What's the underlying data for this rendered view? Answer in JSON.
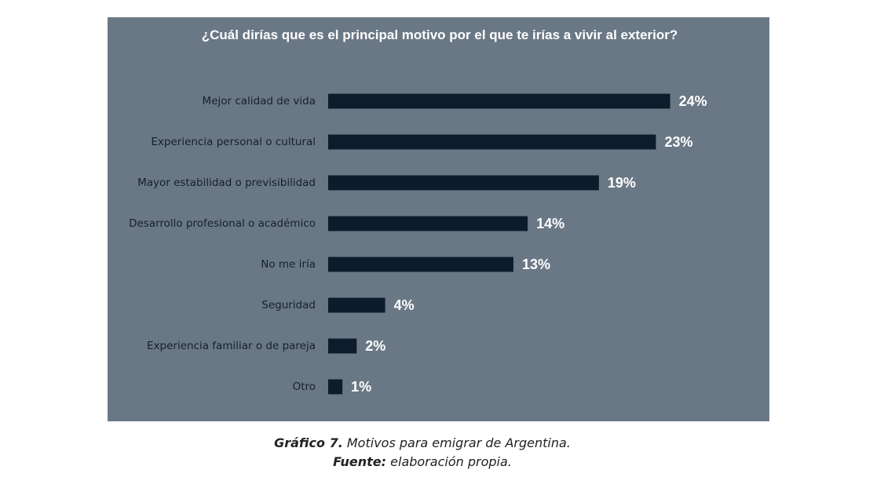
{
  "chart_data": {
    "type": "hbar",
    "title": "¿Cuál dirías que es el principal motivo por el que te irías a vivir al exterior?",
    "categories": [
      "Mejor calidad de vida",
      "Experiencia personal o cultural",
      "Mayor estabilidad o previsibilidad",
      "Desarrollo profesional o académico",
      "No me iría",
      "Seguridad",
      "Experiencia familiar o de pareja",
      "Otro"
    ],
    "values": [
      24,
      23,
      19,
      14,
      13,
      4,
      2,
      1
    ],
    "value_labels": [
      "24%",
      "23%",
      "19%",
      "14%",
      "13%",
      "4%",
      "2%",
      "1%"
    ],
    "color": "#0e1b2b",
    "background": "#6a7886"
  },
  "caption": {
    "figure_label": "Gráfico 7.",
    "figure_text": "Motivos para emigrar de Argentina.",
    "source_label": "Fuente:",
    "source_text": "elaboración propia."
  }
}
